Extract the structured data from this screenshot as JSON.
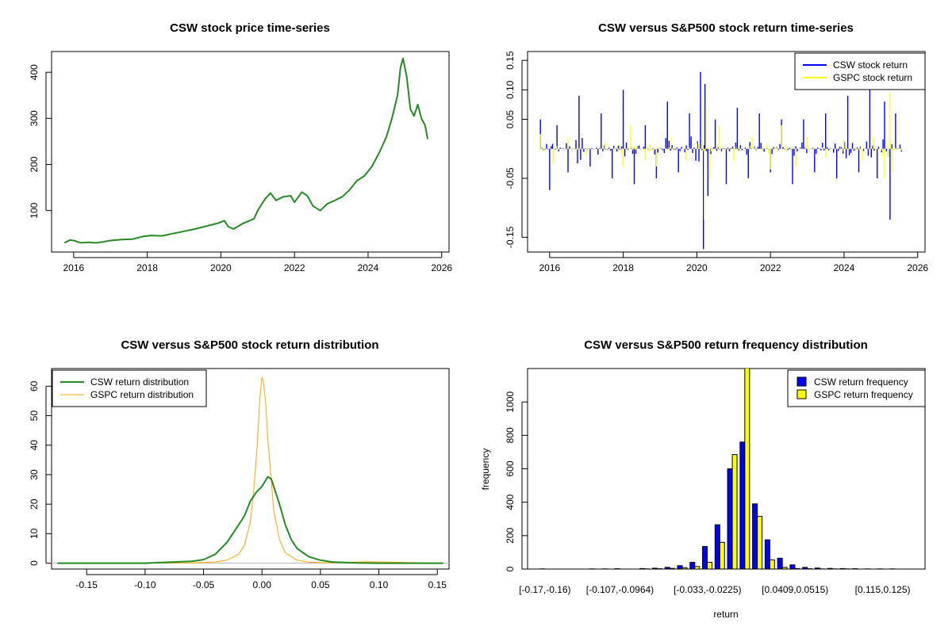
{
  "chart_data": [
    {
      "type": "line",
      "title": "CSW stock price time-series",
      "xlabel": "",
      "ylabel": "",
      "xlim": [
        2015.4,
        2026.2
      ],
      "ylim": [
        10,
        445
      ],
      "x_ticks": [
        "2016",
        "2018",
        "2020",
        "2022",
        "2024",
        "2026"
      ],
      "y_ticks": [
        "100",
        "200",
        "300",
        "400"
      ],
      "series": [
        {
          "color": "#228B22",
          "x": [
            2015.75,
            2015.9,
            2016.0,
            2016.2,
            2016.4,
            2016.6,
            2016.8,
            2017.0,
            2017.3,
            2017.6,
            2017.9,
            2018.1,
            2018.4,
            2018.7,
            2019.0,
            2019.3,
            2019.6,
            2019.9,
            2020.1,
            2020.2,
            2020.35,
            2020.6,
            2020.9,
            2021.0,
            2021.2,
            2021.35,
            2021.5,
            2021.7,
            2021.9,
            2022.0,
            2022.2,
            2022.35,
            2022.5,
            2022.7,
            2022.9,
            2023.1,
            2023.3,
            2023.5,
            2023.7,
            2023.9,
            2024.1,
            2024.3,
            2024.5,
            2024.65,
            2024.8,
            2024.88,
            2024.95,
            2025.05,
            2025.15,
            2025.25,
            2025.35,
            2025.45,
            2025.55,
            2025.62
          ],
          "values": [
            30,
            36,
            35,
            30,
            31,
            30,
            32,
            35,
            37,
            38,
            44,
            46,
            45,
            50,
            55,
            60,
            66,
            72,
            78,
            65,
            60,
            72,
            82,
            100,
            125,
            138,
            122,
            130,
            132,
            118,
            140,
            132,
            110,
            100,
            115,
            122,
            130,
            145,
            165,
            175,
            195,
            225,
            260,
            300,
            350,
            410,
            430,
            390,
            320,
            305,
            330,
            300,
            285,
            255
          ]
        }
      ]
    },
    {
      "type": "line",
      "title": "CSW versus S&P500 stock return time-series",
      "xlabel": "",
      "ylabel": "",
      "xlim": [
        2015.4,
        2026.2
      ],
      "ylim": [
        -0.175,
        0.165
      ],
      "x_ticks": [
        "2016",
        "2018",
        "2020",
        "2022",
        "2024",
        "2026"
      ],
      "y_ticks": [
        "-0.15",
        "-0.05",
        "0.05",
        "0.10",
        "0.15"
      ],
      "legend": "top-right",
      "series": [
        {
          "name": "CSW stock return",
          "color": "#0000FF",
          "x": [
            2015.75,
            2016.0,
            2016.2,
            2016.5,
            2016.8,
            2017.1,
            2017.4,
            2017.7,
            2018.0,
            2018.3,
            2018.6,
            2018.9,
            2019.2,
            2019.5,
            2019.8,
            2020.1,
            2020.18,
            2020.22,
            2020.3,
            2020.5,
            2020.8,
            2021.1,
            2021.4,
            2021.7,
            2022.0,
            2022.3,
            2022.6,
            2022.9,
            2023.2,
            2023.5,
            2023.8,
            2024.1,
            2024.4,
            2024.7,
            2024.9,
            2025.1,
            2025.25,
            2025.4,
            2025.6
          ],
          "values": [
            0.05,
            -0.07,
            0.04,
            -0.04,
            0.09,
            -0.03,
            0.06,
            -0.05,
            0.1,
            -0.06,
            0.04,
            -0.05,
            0.08,
            -0.04,
            0.06,
            0.13,
            -0.17,
            0.11,
            -0.08,
            0.05,
            -0.06,
            0.07,
            -0.05,
            0.06,
            -0.04,
            0.05,
            -0.06,
            0.05,
            -0.04,
            0.06,
            -0.05,
            0.09,
            -0.04,
            0.1,
            -0.05,
            0.08,
            -0.12,
            0.06,
            -0.08
          ]
        },
        {
          "name": "GSPC stock return",
          "color": "#FFFF00",
          "x": [
            2015.75,
            2016.1,
            2016.5,
            2017.0,
            2017.5,
            2018.0,
            2018.2,
            2018.6,
            2018.9,
            2019.3,
            2019.7,
            2020.0,
            2020.15,
            2020.2,
            2020.25,
            2020.35,
            2020.6,
            2021.0,
            2021.5,
            2022.0,
            2022.3,
            2022.7,
            2023.0,
            2023.5,
            2024.0,
            2024.5,
            2024.8,
            2025.1,
            2025.25,
            2025.3,
            2025.6
          ],
          "values": [
            0.025,
            -0.025,
            0.02,
            -0.01,
            0.01,
            -0.03,
            0.04,
            -0.02,
            -0.03,
            0.02,
            -0.02,
            0.01,
            0.09,
            -0.12,
            0.07,
            -0.05,
            0.04,
            -0.02,
            0.02,
            -0.035,
            0.04,
            -0.03,
            0.02,
            -0.015,
            0.015,
            -0.02,
            0.02,
            -0.05,
            0.095,
            -0.04,
            0.02
          ]
        }
      ]
    },
    {
      "type": "line",
      "title": "CSW versus S&P500 stock return distribution",
      "xlabel": "",
      "ylabel": "",
      "xlim": [
        -0.18,
        0.16
      ],
      "ylim": [
        -2,
        66
      ],
      "x_ticks": [
        "-0.15",
        "-0.10",
        "-0.05",
        "0.00",
        "0.05",
        "0.10",
        "0.15"
      ],
      "y_ticks": [
        "0",
        "10",
        "20",
        "30",
        "40",
        "50",
        "60"
      ],
      "legend": "top-left",
      "series": [
        {
          "name": "CSW return distribution",
          "color": "#228B22",
          "x": [
            -0.175,
            -0.1,
            -0.08,
            -0.06,
            -0.05,
            -0.04,
            -0.03,
            -0.025,
            -0.02,
            -0.015,
            -0.01,
            -0.005,
            0.0,
            0.003,
            0.005,
            0.008,
            0.01,
            0.015,
            0.02,
            0.025,
            0.03,
            0.04,
            0.05,
            0.06,
            0.08,
            0.1,
            0.155
          ],
          "values": [
            0,
            0,
            0.3,
            0.6,
            1.2,
            3,
            7,
            10,
            13,
            16,
            21,
            24,
            26,
            28,
            29.3,
            28.5,
            26,
            20,
            13,
            8,
            5,
            2.2,
            1,
            0.4,
            0.1,
            0,
            0
          ]
        },
        {
          "name": "GSPC return distribution",
          "color": "#FFA500",
          "x": [
            -0.175,
            -0.06,
            -0.04,
            -0.03,
            -0.02,
            -0.015,
            -0.01,
            -0.007,
            -0.004,
            -0.002,
            0.0,
            0.001,
            0.003,
            0.005,
            0.008,
            0.01,
            0.015,
            0.02,
            0.03,
            0.04,
            0.06,
            0.09,
            0.155
          ],
          "values": [
            0,
            0.1,
            0.4,
            1,
            3,
            6,
            14,
            25,
            40,
            55,
            63,
            62,
            55,
            42,
            28,
            18,
            8,
            3.5,
            1,
            0.3,
            0.1,
            0.5,
            0
          ]
        }
      ]
    },
    {
      "type": "bar",
      "title": "CSW versus S&P500 return frequency distribution",
      "xlabel": "return",
      "ylabel": "frequency",
      "ylim": [
        0,
        1200
      ],
      "y_ticks": [
        "0",
        "200",
        "400",
        "600",
        "800",
        "1000"
      ],
      "legend": "top-right",
      "x_tick_labels": [
        "[-0.17,-0.16)",
        "[-0.107,-0.0964)",
        "[-0.033,-0.0225)",
        "[0.0409,0.0515)",
        "[0.115,0.125)"
      ],
      "x_tick_bins": [
        0,
        6,
        13,
        20,
        27
      ],
      "series": [
        {
          "name": "CSW return frequency",
          "color": "#0000FF",
          "values": [
            1,
            0,
            0,
            0,
            1,
            1,
            2,
            0,
            3,
            5,
            10,
            20,
            40,
            135,
            265,
            600,
            760,
            390,
            175,
            65,
            25,
            10,
            6,
            4,
            3,
            2,
            1,
            1,
            1,
            0
          ]
        },
        {
          "name": "GSPC return frequency",
          "color": "#FFFF00",
          "values": [
            0,
            0,
            0,
            0,
            0,
            0,
            0,
            0,
            1,
            2,
            4,
            8,
            15,
            40,
            160,
            685,
            1210,
            315,
            55,
            10,
            3,
            2,
            1,
            1,
            1,
            0,
            0,
            0,
            0,
            0
          ]
        }
      ]
    }
  ]
}
